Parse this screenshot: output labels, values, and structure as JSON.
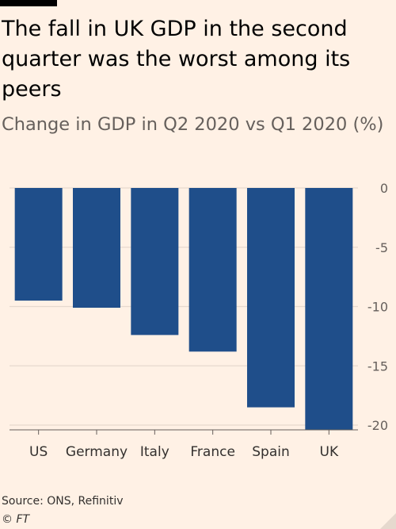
{
  "headline": "The fall in UK GDP in the second quarter was the worst among its peers",
  "subheadline": "Change in GDP in Q2 2020 vs Q1 2020 (%)",
  "source": "Source: ONS, Refinitiv",
  "credit": "© FT",
  "colors": {
    "bar": "#1f4e8a",
    "background": "#fff1e5",
    "grid": "#e6d9ce",
    "axis": "#66605c"
  },
  "chart_data": {
    "type": "bar",
    "categories": [
      "US",
      "Germany",
      "Italy",
      "France",
      "Spain",
      "UK"
    ],
    "values": [
      -9.5,
      -10.1,
      -12.4,
      -13.8,
      -18.5,
      -20.4
    ],
    "ylim": [
      -20.4,
      0
    ],
    "yticks": [
      0,
      -5,
      -10,
      -15,
      -20
    ],
    "ytick_side": "right",
    "grid": true
  }
}
